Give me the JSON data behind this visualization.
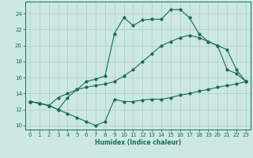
{
  "xlabel": "Humidex (Indice chaleur)",
  "xlim": [
    -0.5,
    23.5
  ],
  "ylim": [
    9.5,
    25.5
  ],
  "xticks": [
    0,
    1,
    2,
    3,
    4,
    5,
    6,
    7,
    8,
    9,
    10,
    11,
    12,
    13,
    14,
    15,
    16,
    17,
    18,
    19,
    20,
    21,
    22,
    23
  ],
  "yticks": [
    10,
    12,
    14,
    16,
    18,
    20,
    22,
    24
  ],
  "bg_color": "#cce8e0",
  "line_color": "#1a6b5a",
  "grid_color": "#aacfc8",
  "line1_x": [
    0,
    1,
    2,
    3,
    4,
    5,
    6,
    7,
    8,
    9,
    10,
    11,
    12,
    13,
    14,
    15,
    16,
    17,
    18,
    19,
    20,
    21,
    22,
    23
  ],
  "line1_y": [
    13.0,
    12.8,
    12.5,
    12.0,
    11.5,
    11.0,
    10.5,
    10.0,
    10.5,
    13.3,
    13.0,
    13.0,
    13.2,
    13.3,
    13.3,
    13.5,
    13.8,
    14.0,
    14.3,
    14.5,
    14.8,
    15.0,
    15.2,
    15.5
  ],
  "line2_x": [
    0,
    1,
    2,
    3,
    4,
    5,
    6,
    7,
    8,
    9,
    10,
    11,
    12,
    13,
    14,
    15,
    16,
    17,
    18,
    19,
    20,
    21,
    22,
    23
  ],
  "line2_y": [
    13.0,
    12.8,
    12.5,
    13.5,
    14.0,
    14.5,
    14.8,
    15.0,
    15.2,
    15.5,
    16.2,
    17.0,
    18.0,
    19.0,
    20.0,
    20.5,
    21.0,
    21.3,
    21.0,
    20.5,
    20.0,
    17.0,
    16.5,
    15.5
  ],
  "line3_x": [
    0,
    1,
    2,
    3,
    4,
    5,
    6,
    7,
    8,
    9,
    10,
    11,
    12,
    13,
    14,
    15,
    16,
    17,
    18,
    19,
    20,
    21,
    22,
    23
  ],
  "line3_y": [
    13.0,
    12.8,
    12.5,
    12.0,
    13.5,
    14.5,
    15.5,
    15.8,
    16.2,
    21.5,
    23.5,
    22.5,
    23.2,
    23.3,
    23.3,
    24.5,
    24.5,
    23.5,
    21.5,
    20.5,
    20.0,
    19.5,
    17.0,
    15.5
  ]
}
